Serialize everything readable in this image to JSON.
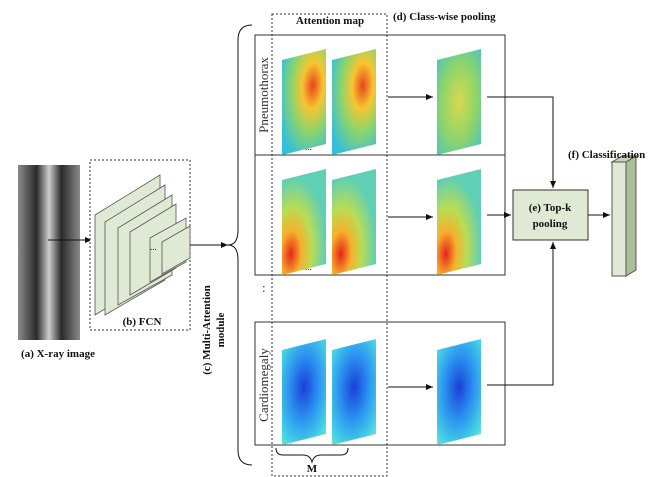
{
  "labels": {
    "xray": "(a) X-ray image",
    "fcn": "(b) FCN",
    "module_line1": "(c) Multi-Attention",
    "module_line2": "module",
    "attention_map": "Attention map",
    "class_pooling": "(d) Class-wise pooling",
    "topk_line1": "(e) Top-k",
    "topk_line2": "pooling",
    "classification": "(f) Classification",
    "fcn_dots": "...",
    "m": "M"
  },
  "rows": [
    {
      "class": "Pneumothorax",
      "dots": "..."
    },
    {
      "class": "",
      "dots": "..."
    },
    {
      "class": "Cardiomegaly"
    }
  ]
}
